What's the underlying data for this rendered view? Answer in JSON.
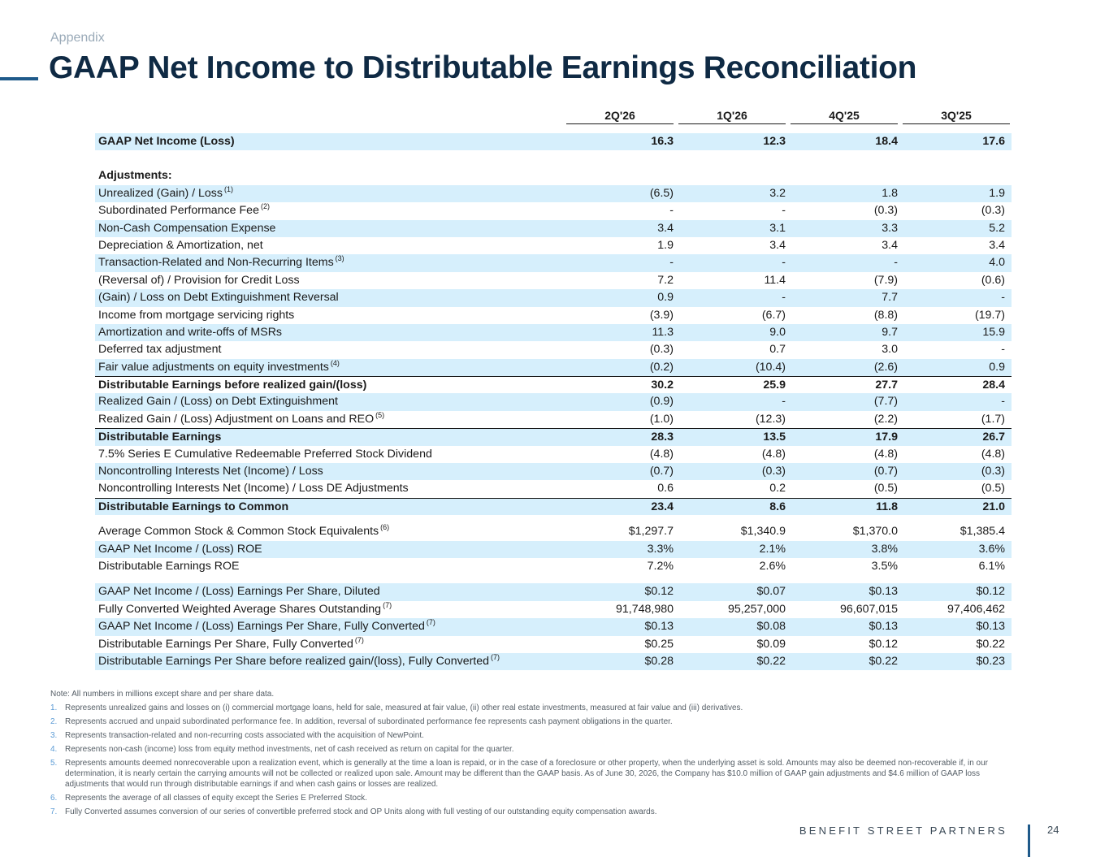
{
  "header": {
    "eyebrow": "Appendix",
    "title": "GAAP Net Income to Distributable Earnings Reconciliation"
  },
  "table": {
    "columns": [
      "2Q'26",
      "1Q'26",
      "4Q'25",
      "3Q'25"
    ],
    "gaap_net_income": {
      "label": "GAAP Net Income (Loss)",
      "values": [
        "16.3",
        "12.3",
        "18.4",
        "17.6"
      ]
    },
    "adjustments_label": "Adjustments:",
    "adjustments": [
      {
        "label": "Unrealized (Gain) / Loss",
        "note": "(1)",
        "values": [
          "(6.5)",
          "3.2",
          "1.8",
          "1.9"
        ]
      },
      {
        "label": "Subordinated Performance Fee",
        "note": "(2)",
        "values": [
          "-",
          "-",
          "(0.3)",
          "(0.3)"
        ]
      },
      {
        "label": "Non-Cash Compensation Expense",
        "note": "",
        "values": [
          "3.4",
          "3.1",
          "3.3",
          "5.2"
        ]
      },
      {
        "label": "Depreciation & Amortization, net",
        "note": "",
        "values": [
          "1.9",
          "3.4",
          "3.4",
          "3.4"
        ]
      },
      {
        "label": "Transaction-Related and Non-Recurring Items",
        "note": "(3)",
        "values": [
          "-",
          "-",
          "-",
          "4.0"
        ]
      },
      {
        "label": "(Reversal of) / Provision for Credit Loss",
        "note": "",
        "values": [
          "7.2",
          "11.4",
          "(7.9)",
          "(0.6)"
        ]
      },
      {
        "label": "(Gain) / Loss on Debt Extinguishment Reversal",
        "note": "",
        "values": [
          "0.9",
          "-",
          "7.7",
          "-"
        ]
      },
      {
        "label": "Income from mortgage servicing rights",
        "note": "",
        "values": [
          "(3.9)",
          "(6.7)",
          "(8.8)",
          "(19.7)"
        ]
      },
      {
        "label": "Amortization and write-offs of MSRs",
        "note": "",
        "values": [
          "11.3",
          "9.0",
          "9.7",
          "15.9"
        ]
      },
      {
        "label": "Deferred tax adjustment",
        "note": "",
        "values": [
          "(0.3)",
          "0.7",
          "3.0",
          "-"
        ]
      },
      {
        "label": "Fair value adjustments on equity investments",
        "note": "(4)",
        "values": [
          "(0.2)",
          "(10.4)",
          "(2.6)",
          "0.9"
        ]
      }
    ],
    "de_before_realized": {
      "label": "Distributable Earnings before realized gain/(loss)",
      "values": [
        "30.2",
        "25.9",
        "27.7",
        "28.4"
      ]
    },
    "realized": [
      {
        "label": "Realized Gain / (Loss) on Debt Extinguishment",
        "note": "",
        "values": [
          "(0.9)",
          "-",
          "(7.7)",
          "-"
        ]
      },
      {
        "label": "Realized Gain / (Loss) Adjustment on Loans and REO",
        "note": "(5)",
        "values": [
          "(1.0)",
          "(12.3)",
          "(2.2)",
          "(1.7)"
        ]
      }
    ],
    "distributable_earnings": {
      "label": "Distributable Earnings",
      "values": [
        "28.3",
        "13.5",
        "17.9",
        "26.7"
      ]
    },
    "to_common": [
      {
        "label": "7.5% Series E Cumulative Redeemable Preferred Stock Dividend",
        "note": "",
        "values": [
          "(4.8)",
          "(4.8)",
          "(4.8)",
          "(4.8)"
        ]
      },
      {
        "label": "Noncontrolling Interests Net (Income) / Loss",
        "note": "",
        "values": [
          "(0.7)",
          "(0.3)",
          "(0.7)",
          "(0.3)"
        ]
      },
      {
        "label": "Noncontrolling Interests Net (Income) / Loss DE Adjustments",
        "note": "",
        "values": [
          "0.6",
          "0.2",
          "(0.5)",
          "(0.5)"
        ]
      }
    ],
    "de_to_common": {
      "label": "Distributable Earnings to Common",
      "values": [
        "23.4",
        "8.6",
        "11.8",
        "21.0"
      ]
    },
    "equity_rows": [
      {
        "label": "Average Common Stock & Common Stock Equivalents",
        "note": "(6)",
        "values": [
          "$1,297.7",
          "$1,340.9",
          "$1,370.0",
          "$1,385.4"
        ]
      },
      {
        "label": "GAAP Net Income / (Loss) ROE",
        "note": "",
        "values": [
          "3.3%",
          "2.1%",
          "3.8%",
          "3.6%"
        ]
      },
      {
        "label": "Distributable Earnings ROE",
        "note": "",
        "values": [
          "7.2%",
          "2.6%",
          "3.5%",
          "6.1%"
        ]
      }
    ],
    "per_share_rows": [
      {
        "label": "GAAP Net Income / (Loss) Earnings Per Share, Diluted",
        "note": "",
        "values": [
          "$0.12",
          "$0.07",
          "$0.13",
          "$0.12"
        ]
      },
      {
        "label": "Fully Converted Weighted Average Shares Outstanding",
        "note": "(7)",
        "values": [
          "91,748,980",
          "95,257,000",
          "96,607,015",
          "97,406,462"
        ]
      },
      {
        "label": "GAAP Net Income / (Loss) Earnings Per Share, Fully Converted",
        "note": "(7)",
        "values": [
          "$0.13",
          "$0.08",
          "$0.13",
          "$0.13"
        ]
      },
      {
        "label": "Distributable Earnings Per Share, Fully Converted",
        "note": "(7)",
        "values": [
          "$0.25",
          "$0.09",
          "$0.12",
          "$0.22"
        ]
      },
      {
        "label": "Distributable Earnings Per Share before realized gain/(loss), Fully Converted",
        "note": "(7)",
        "values": [
          "$0.28",
          "$0.22",
          "$0.22",
          "$0.23"
        ]
      }
    ]
  },
  "notes": {
    "intro": "Note: All numbers in millions except share and per share data.",
    "items": [
      {
        "num": "1.",
        "text": "Represents unrealized gains and losses on (i) commercial mortgage loans, held for sale, measured at fair value, (ii) other real estate investments, measured at fair value and (iii) derivatives."
      },
      {
        "num": "2.",
        "text": "Represents accrued and unpaid subordinated performance fee. In addition, reversal of subordinated performance fee represents cash payment obligations in the quarter."
      },
      {
        "num": "3.",
        "text": "Represents transaction-related and non-recurring costs associated with the acquisition of NewPoint."
      },
      {
        "num": "4.",
        "text": "Represents non-cash (income) loss from equity method investments, net of cash received as return on capital for the quarter."
      },
      {
        "num": "5.",
        "text": "Represents amounts deemed nonrecoverable upon a realization event, which is generally at the time a loan is repaid, or in the case of a foreclosure or other property, when the underlying asset is sold. Amounts may also be deemed non-recoverable if, in our determination, it is nearly certain the carrying amounts will not be collected or realized upon sale.  Amount may be different than the GAAP basis. As of June 30, 2026, the Company has $10.0 million of GAAP gain adjustments and $4.6 million of GAAP loss adjustments that would run through distributable earnings if and when cash gains or losses are realized."
      },
      {
        "num": "6.",
        "text": "Represents the average of all classes of equity except the Series E Preferred Stock."
      },
      {
        "num": "7.",
        "text": "Fully Converted assumes conversion of our series of convertible preferred stock and OP Units along with full vesting of our outstanding equity compensation awards."
      }
    ]
  },
  "footer": {
    "brand": "BENEFIT STREET PARTNERS",
    "page": "24"
  }
}
